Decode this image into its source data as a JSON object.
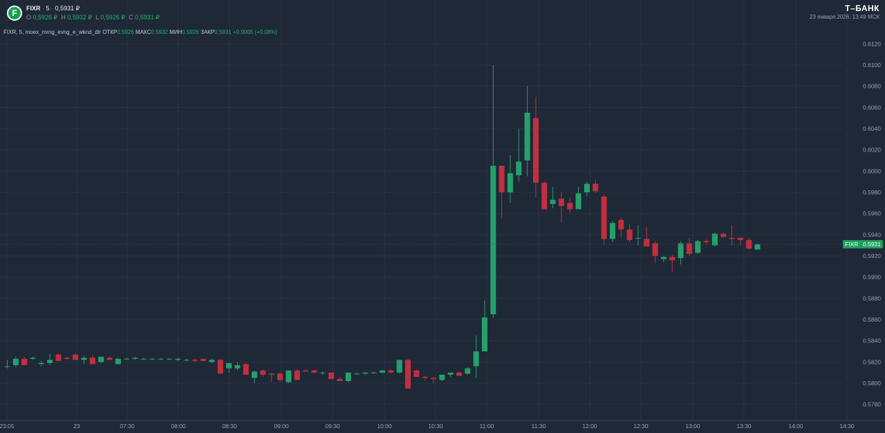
{
  "header": {
    "logo_letter": "F",
    "ticker": "FIXR",
    "interval": "5",
    "price": "0,5931 ₽",
    "o_label": "O",
    "o_value": "0,5926 ₽",
    "h_label": "H",
    "h_value": "0,5932 ₽",
    "l_label": "L",
    "l_value": "0,5926 ₽",
    "c_label": "C",
    "c_value": "0,5931 ₽"
  },
  "brand": {
    "name": "Т–БАНК",
    "timestamp": "23 января 2026, 13:49 МСК"
  },
  "study": {
    "name": "FIXR, 5, moex_mrng_evng_e_wknd_dlr",
    "open_label": "ОТКР",
    "open_value": "0.5926",
    "high_label": "МАКС",
    "high_value": "0.5932",
    "low_label": "МИН",
    "low_value": "0.5926",
    "close_label": "ЗАКР",
    "close_value": "0.5931",
    "change": "+0.0005 (+0.08%)"
  },
  "colors": {
    "background": "#1f2837",
    "up": "#26a06a",
    "down": "#c0303f",
    "grid": "#283242",
    "axis_text": "#9aa1ad",
    "last_price_bg": "#1f9e5f"
  },
  "chart_data": {
    "type": "candlestick",
    "symbol": "FIXR",
    "interval_minutes": 5,
    "y_ticks": [
      "0.6120",
      "0.6100",
      "0.6080",
      "0.6060",
      "0.6040",
      "0.6020",
      "0.6000",
      "0.5980",
      "0.5960",
      "0.5940",
      "0.5920",
      "0.5900",
      "0.5880",
      "0.5860",
      "0.5840",
      "0.5820",
      "0.5800",
      "0.5780"
    ],
    "ylim": [
      0.5766,
      0.6135
    ],
    "x_ticks": [
      "23:05",
      "23",
      "07:30",
      "08:00",
      "08:30",
      "09:00",
      "09:30",
      "10:00",
      "10:30",
      "11:00",
      "11:30",
      "12:00",
      "12:30",
      "13:00",
      "13:30",
      "14:00",
      "14:30"
    ],
    "last_price": {
      "label": "FIXR",
      "value": "0.5931"
    },
    "candles": [
      {
        "o": 0.5816,
        "h": 0.5822,
        "l": 0.5814,
        "c": 0.5816
      },
      {
        "o": 0.5817,
        "h": 0.5825,
        "l": 0.5815,
        "c": 0.5823
      },
      {
        "o": 0.5823,
        "h": 0.5825,
        "l": 0.5817,
        "c": 0.5817
      },
      {
        "o": 0.5823,
        "h": 0.5825,
        "l": 0.5822,
        "c": 0.5824
      },
      {
        "o": 0.5818,
        "h": 0.5821,
        "l": 0.5816,
        "c": 0.5819
      },
      {
        "o": 0.5819,
        "h": 0.5828,
        "l": 0.5817,
        "c": 0.5822
      },
      {
        "o": 0.5827,
        "h": 0.5828,
        "l": 0.5821,
        "c": 0.5821
      },
      {
        "o": 0.5824,
        "h": 0.5825,
        "l": 0.5822,
        "c": 0.5823
      },
      {
        "o": 0.5827,
        "h": 0.5828,
        "l": 0.5822,
        "c": 0.5822
      },
      {
        "o": 0.5822,
        "h": 0.5826,
        "l": 0.5818,
        "c": 0.5824
      },
      {
        "o": 0.5824,
        "h": 0.5826,
        "l": 0.5818,
        "c": 0.5818
      },
      {
        "o": 0.582,
        "h": 0.5825,
        "l": 0.5819,
        "c": 0.5825
      },
      {
        "o": 0.5824,
        "h": 0.5825,
        "l": 0.5822,
        "c": 0.5822
      },
      {
        "o": 0.5818,
        "h": 0.5824,
        "l": 0.5818,
        "c": 0.5823
      },
      {
        "o": 0.5823,
        "h": 0.5824,
        "l": 0.5822,
        "c": 0.5823
      },
      {
        "o": 0.5823,
        "h": 0.5825,
        "l": 0.5822,
        "c": 0.5824
      },
      {
        "o": 0.5823,
        "h": 0.5824,
        "l": 0.5822,
        "c": 0.5823
      },
      {
        "o": 0.5823,
        "h": 0.5824,
        "l": 0.5822,
        "c": 0.5823
      },
      {
        "o": 0.5823,
        "h": 0.5824,
        "l": 0.5822,
        "c": 0.5823
      },
      {
        "o": 0.5823,
        "h": 0.5824,
        "l": 0.5822,
        "c": 0.5823
      },
      {
        "o": 0.5822,
        "h": 0.5824,
        "l": 0.5821,
        "c": 0.5823
      },
      {
        "o": 0.5822,
        "h": 0.5823,
        "l": 0.5821,
        "c": 0.5822
      },
      {
        "o": 0.5822,
        "h": 0.5823,
        "l": 0.582,
        "c": 0.5821
      },
      {
        "o": 0.5823,
        "h": 0.5823,
        "l": 0.5821,
        "c": 0.5821
      },
      {
        "o": 0.582,
        "h": 0.5823,
        "l": 0.5819,
        "c": 0.5822
      },
      {
        "o": 0.5822,
        "h": 0.5823,
        "l": 0.581,
        "c": 0.5809
      },
      {
        "o": 0.5814,
        "h": 0.5819,
        "l": 0.581,
        "c": 0.5819
      },
      {
        "o": 0.5814,
        "h": 0.582,
        "l": 0.5812,
        "c": 0.5817
      },
      {
        "o": 0.5818,
        "h": 0.5819,
        "l": 0.5808,
        "c": 0.5808
      },
      {
        "o": 0.5805,
        "h": 0.5812,
        "l": 0.58,
        "c": 0.5811
      },
      {
        "o": 0.5812,
        "h": 0.5813,
        "l": 0.5806,
        "c": 0.5808
      },
      {
        "o": 0.5809,
        "h": 0.581,
        "l": 0.5801,
        "c": 0.5808
      },
      {
        "o": 0.5809,
        "h": 0.581,
        "l": 0.5801,
        "c": 0.5803
      },
      {
        "o": 0.5801,
        "h": 0.5812,
        "l": 0.58,
        "c": 0.5812
      },
      {
        "o": 0.5812,
        "h": 0.5813,
        "l": 0.5803,
        "c": 0.5803
      },
      {
        "o": 0.5812,
        "h": 0.5813,
        "l": 0.5811,
        "c": 0.5811
      },
      {
        "o": 0.5812,
        "h": 0.5813,
        "l": 0.5809,
        "c": 0.581
      },
      {
        "o": 0.581,
        "h": 0.5811,
        "l": 0.5808,
        "c": 0.581
      },
      {
        "o": 0.581,
        "h": 0.581,
        "l": 0.5803,
        "c": 0.5804
      },
      {
        "o": 0.5804,
        "h": 0.5806,
        "l": 0.5802,
        "c": 0.5802
      },
      {
        "o": 0.5802,
        "h": 0.581,
        "l": 0.5801,
        "c": 0.581
      },
      {
        "o": 0.5809,
        "h": 0.581,
        "l": 0.5808,
        "c": 0.5809
      },
      {
        "o": 0.5809,
        "h": 0.581,
        "l": 0.5808,
        "c": 0.581
      },
      {
        "o": 0.581,
        "h": 0.5811,
        "l": 0.5809,
        "c": 0.581
      },
      {
        "o": 0.581,
        "h": 0.5813,
        "l": 0.5809,
        "c": 0.5812
      },
      {
        "o": 0.5812,
        "h": 0.5813,
        "l": 0.5809,
        "c": 0.581
      },
      {
        "o": 0.581,
        "h": 0.5822,
        "l": 0.5809,
        "c": 0.5822
      },
      {
        "o": 0.5822,
        "h": 0.5823,
        "l": 0.5795,
        "c": 0.5795
      },
      {
        "o": 0.5812,
        "h": 0.5813,
        "l": 0.5806,
        "c": 0.5806
      },
      {
        "o": 0.5806,
        "h": 0.5807,
        "l": 0.5803,
        "c": 0.5805
      },
      {
        "o": 0.5805,
        "h": 0.5806,
        "l": 0.58,
        "c": 0.5804
      },
      {
        "o": 0.5803,
        "h": 0.5808,
        "l": 0.5802,
        "c": 0.5808
      },
      {
        "o": 0.5808,
        "h": 0.581,
        "l": 0.5806,
        "c": 0.581
      },
      {
        "o": 0.581,
        "h": 0.5811,
        "l": 0.5807,
        "c": 0.5807
      },
      {
        "o": 0.5809,
        "h": 0.5815,
        "l": 0.5808,
        "c": 0.5814
      },
      {
        "o": 0.5816,
        "h": 0.5845,
        "l": 0.5805,
        "c": 0.583
      },
      {
        "o": 0.583,
        "h": 0.5878,
        "l": 0.583,
        "c": 0.5862
      },
      {
        "o": 0.5865,
        "h": 0.61,
        "l": 0.5862,
        "c": 0.6005
      },
      {
        "o": 0.6005,
        "h": 0.6005,
        "l": 0.5955,
        "c": 0.598
      },
      {
        "o": 0.598,
        "h": 0.6015,
        "l": 0.597,
        "c": 0.5998
      },
      {
        "o": 0.5996,
        "h": 0.604,
        "l": 0.599,
        "c": 0.6009
      },
      {
        "o": 0.601,
        "h": 0.608,
        "l": 0.5995,
        "c": 0.6055
      },
      {
        "o": 0.605,
        "h": 0.607,
        "l": 0.5975,
        "c": 0.5989
      },
      {
        "o": 0.5989,
        "h": 0.599,
        "l": 0.5964,
        "c": 0.5964
      },
      {
        "o": 0.5969,
        "h": 0.5985,
        "l": 0.5965,
        "c": 0.5973
      },
      {
        "o": 0.5974,
        "h": 0.598,
        "l": 0.5952,
        "c": 0.5967
      },
      {
        "o": 0.597,
        "h": 0.5975,
        "l": 0.596,
        "c": 0.5964
      },
      {
        "o": 0.5964,
        "h": 0.5985,
        "l": 0.5964,
        "c": 0.5979
      },
      {
        "o": 0.598,
        "h": 0.599,
        "l": 0.5976,
        "c": 0.5988
      },
      {
        "o": 0.5988,
        "h": 0.5992,
        "l": 0.5979,
        "c": 0.5981
      },
      {
        "o": 0.5976,
        "h": 0.5978,
        "l": 0.593,
        "c": 0.5936
      },
      {
        "o": 0.5936,
        "h": 0.5953,
        "l": 0.5933,
        "c": 0.5951
      },
      {
        "o": 0.5954,
        "h": 0.5956,
        "l": 0.5938,
        "c": 0.5945
      },
      {
        "o": 0.5945,
        "h": 0.595,
        "l": 0.5933,
        "c": 0.5935
      },
      {
        "o": 0.5937,
        "h": 0.5949,
        "l": 0.593,
        "c": 0.5937
      },
      {
        "o": 0.5936,
        "h": 0.5947,
        "l": 0.5929,
        "c": 0.5929
      },
      {
        "o": 0.5932,
        "h": 0.5934,
        "l": 0.5913,
        "c": 0.592
      },
      {
        "o": 0.5917,
        "h": 0.592,
        "l": 0.5914,
        "c": 0.5919
      },
      {
        "o": 0.5919,
        "h": 0.5921,
        "l": 0.5905,
        "c": 0.5916
      },
      {
        "o": 0.5918,
        "h": 0.5934,
        "l": 0.5912,
        "c": 0.5932
      },
      {
        "o": 0.5932,
        "h": 0.5937,
        "l": 0.592,
        "c": 0.5922
      },
      {
        "o": 0.5923,
        "h": 0.5935,
        "l": 0.5922,
        "c": 0.5934
      },
      {
        "o": 0.5934,
        "h": 0.5936,
        "l": 0.5931,
        "c": 0.5933
      },
      {
        "o": 0.593,
        "h": 0.5942,
        "l": 0.5929,
        "c": 0.5941
      },
      {
        "o": 0.5941,
        "h": 0.5942,
        "l": 0.5937,
        "c": 0.5938
      },
      {
        "o": 0.5937,
        "h": 0.5949,
        "l": 0.593,
        "c": 0.5936
      },
      {
        "o": 0.5937,
        "h": 0.5938,
        "l": 0.593,
        "c": 0.5935
      },
      {
        "o": 0.5935,
        "h": 0.5937,
        "l": 0.5926,
        "c": 0.5927
      },
      {
        "o": 0.5926,
        "h": 0.5932,
        "l": 0.5926,
        "c": 0.5931
      }
    ]
  }
}
